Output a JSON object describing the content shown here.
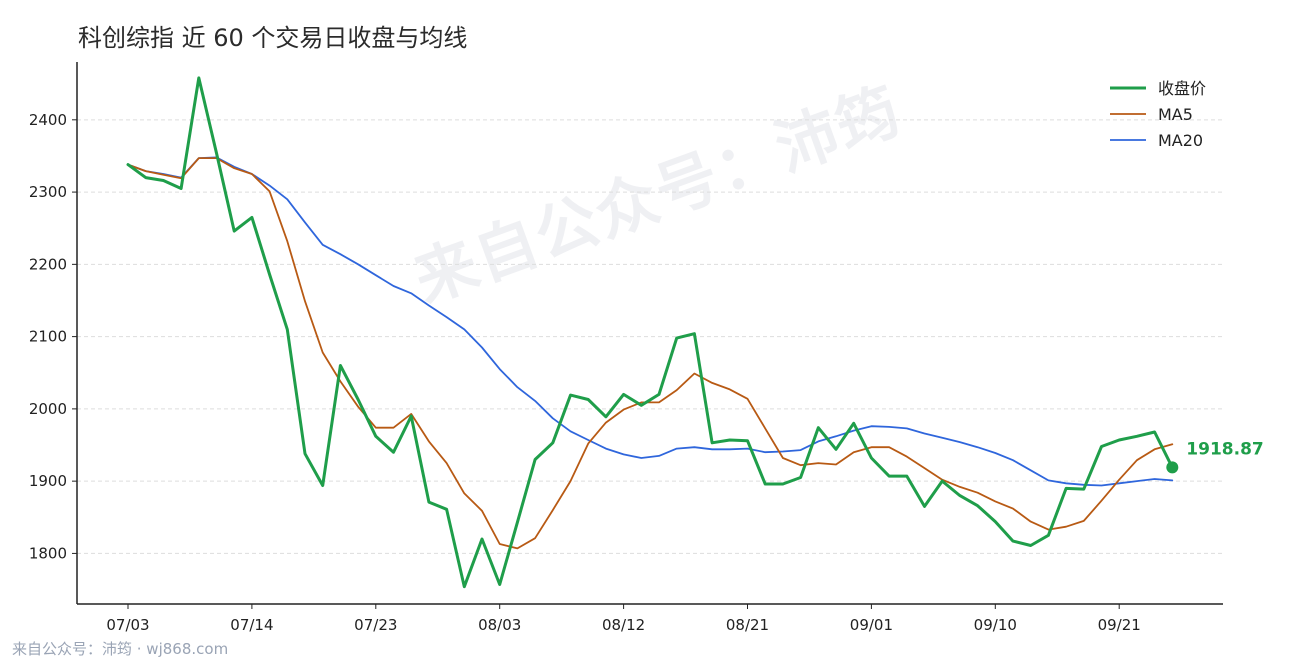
{
  "title": "科创综指 近 60 个交易日收盘与均线",
  "watermark": "来自公众号：沛筠",
  "footer": "来自公众号：沛筠 · wj868.com",
  "colors": {
    "close": "#1f9e4a",
    "ma5": "#b85a14",
    "ma20": "#2f66dc",
    "grid": "#dddddd",
    "axis": "#222222"
  },
  "chart_data": {
    "type": "line",
    "title": "科创综指 近 60 个交易日收盘与均线",
    "ylim": [
      1730,
      2480
    ],
    "yticks": [
      1800,
      1900,
      2000,
      2100,
      2200,
      2300,
      2400
    ],
    "xtick_labels": [
      {
        "label": "07/03",
        "index": 0
      },
      {
        "label": "07/14",
        "index": 7
      },
      {
        "label": "07/23",
        "index": 14
      },
      {
        "label": "08/03",
        "index": 21
      },
      {
        "label": "08/12",
        "index": 28
      },
      {
        "label": "08/21",
        "index": 35
      },
      {
        "label": "09/01",
        "index": 42
      },
      {
        "label": "09/10",
        "index": 49
      },
      {
        "label": "09/21",
        "index": 56
      }
    ],
    "grid": "horizontal dashed",
    "legend": "top-right",
    "last_value_label": "1918.87",
    "series": [
      {
        "name": "收盘价",
        "color": "#1f9e4a",
        "values": [
          2338,
          2320,
          2316,
          2305,
          2458,
          2354,
          2246,
          2265,
          2186,
          2110,
          1938,
          1894,
          2060,
          2013,
          1962,
          1940,
          1990,
          1871,
          1861,
          1754,
          1820,
          1757,
          1843,
          1930,
          1953,
          2019,
          2013,
          1989,
          2020,
          2005,
          2020,
          2098,
          2104,
          1953,
          1957,
          1956,
          1896,
          1896,
          1905,
          1974,
          1944,
          1980,
          1932,
          1907,
          1907,
          1865,
          1900,
          1880,
          1866,
          1844,
          1817,
          1811,
          1825,
          1890,
          1889,
          1948,
          1957,
          1962,
          1968,
          1919
        ]
      },
      {
        "name": "MA5",
        "color": "#b85a14",
        "values": [
          2338,
          2329,
          2324,
          2319,
          2347,
          2347,
          2333,
          2325,
          2301,
          2232,
          2149,
          2078,
          2038,
          2003,
          1974,
          1974,
          1993,
          1955,
          1925,
          1883,
          1859,
          1813,
          1807,
          1821,
          1860,
          1900,
          1952,
          1981,
          1999,
          2009,
          2009,
          2026,
          2049,
          2036,
          2027,
          2014,
          1973,
          1932,
          1922,
          1925,
          1923,
          1940,
          1947,
          1947,
          1934,
          1918,
          1902,
          1892,
          1884,
          1872,
          1862,
          1844,
          1833,
          1837,
          1845,
          1873,
          1902,
          1929,
          1944,
          1951
        ]
      },
      {
        "name": "MA20",
        "color": "#2f66dc",
        "values": [
          2338,
          2329,
          2325,
          2320,
          2347,
          2348,
          2335,
          2325,
          2309,
          2290,
          2258,
          2227,
          2214,
          2200,
          2185,
          2170,
          2160,
          2143,
          2127,
          2110,
          2085,
          2055,
          2030,
          2011,
          1987,
          1969,
          1957,
          1945,
          1937,
          1932,
          1935,
          1945,
          1947,
          1944,
          1944,
          1945,
          1940,
          1941,
          1943,
          1955,
          1962,
          1970,
          1976,
          1975,
          1973,
          1966,
          1960,
          1954,
          1947,
          1939,
          1929,
          1915,
          1901,
          1897,
          1895,
          1894,
          1897,
          1900,
          1903,
          1901
        ]
      }
    ]
  }
}
